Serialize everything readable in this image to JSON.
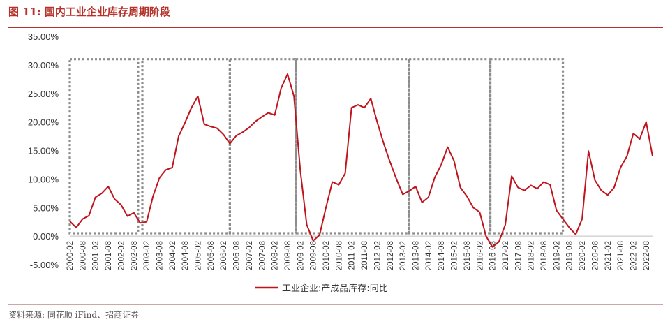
{
  "page": {
    "title": "图 11:  国内工业企业库存周期阶段",
    "source": "资料来源:  同花顺 iFind、招商证券"
  },
  "colors": {
    "accent": "#b5312a",
    "series": "#c0141c",
    "box": "#8c8c8c"
  },
  "chart_data": {
    "type": "line",
    "title": "",
    "xlabel": "",
    "ylabel": "",
    "ylim": [
      -5,
      35
    ],
    "yticks": [
      "35.00%",
      "30.00%",
      "25.00%",
      "20.00%",
      "15.00%",
      "10.00%",
      "5.00%",
      "0.00%",
      "-5.00%"
    ],
    "ytick_values": [
      35,
      30,
      25,
      20,
      15,
      10,
      5,
      0,
      -5
    ],
    "grid": false,
    "legend_position": "bottom",
    "xticks": [
      "2000-02",
      "2000-08",
      "2001-02",
      "2001-08",
      "2002-02",
      "2002-08",
      "2003-02",
      "2003-08",
      "2004-02",
      "2004-08",
      "2005-02",
      "2005-08",
      "2006-02",
      "2006-08",
      "2007-02",
      "2007-08",
      "2008-02",
      "2008-08",
      "2009-02",
      "2009-08",
      "2010-02",
      "2010-08",
      "2011-02",
      "2011-08",
      "2012-02",
      "2012-08",
      "2013-02",
      "2013-08",
      "2014-02",
      "2014-08",
      "2015-02",
      "2015-08",
      "2016-02",
      "2016-08",
      "2017-02",
      "2017-08",
      "2018-02",
      "2018-08",
      "2019-02",
      "2019-08",
      "2020-02",
      "2020-08",
      "2021-02",
      "2021-08",
      "2022-02",
      "2022-08"
    ],
    "series": [
      {
        "name": "工业企业:产成品库存:同比",
        "x": [
          "2000-02",
          "2000-05",
          "2000-08",
          "2000-11",
          "2001-02",
          "2001-05",
          "2001-08",
          "2001-11",
          "2002-02",
          "2002-05",
          "2002-08",
          "2002-11",
          "2003-02",
          "2003-05",
          "2003-08",
          "2003-11",
          "2004-02",
          "2004-05",
          "2004-08",
          "2004-11",
          "2005-02",
          "2005-05",
          "2005-08",
          "2005-11",
          "2006-02",
          "2006-05",
          "2006-08",
          "2006-11",
          "2007-02",
          "2007-05",
          "2007-08",
          "2007-11",
          "2008-02",
          "2008-05",
          "2008-08",
          "2008-11",
          "2009-02",
          "2009-05",
          "2009-08",
          "2009-11",
          "2010-02",
          "2010-05",
          "2010-08",
          "2010-11",
          "2011-02",
          "2011-05",
          "2011-08",
          "2011-11",
          "2012-02",
          "2012-05",
          "2012-08",
          "2012-11",
          "2013-02",
          "2013-05",
          "2013-08",
          "2013-11",
          "2014-02",
          "2014-05",
          "2014-08",
          "2014-11",
          "2015-02",
          "2015-05",
          "2015-08",
          "2015-11",
          "2016-02",
          "2016-05",
          "2016-08",
          "2016-11",
          "2017-02",
          "2017-05",
          "2017-08",
          "2017-11",
          "2018-02",
          "2018-05",
          "2018-08",
          "2018-11",
          "2019-02",
          "2019-05",
          "2019-08",
          "2019-11",
          "2020-02",
          "2020-05",
          "2020-08",
          "2020-11",
          "2021-02",
          "2021-05",
          "2021-08",
          "2021-11",
          "2022-02",
          "2022-05",
          "2022-08",
          "2022-11"
        ],
        "values": [
          2.6,
          1.5,
          3.0,
          3.6,
          6.8,
          7.5,
          8.7,
          6.5,
          5.5,
          3.5,
          4.1,
          2.3,
          2.5,
          7.0,
          10.2,
          11.6,
          12.0,
          17.5,
          19.9,
          22.5,
          24.5,
          19.6,
          19.2,
          18.9,
          17.8,
          16.2,
          17.6,
          18.2,
          19.0,
          20.1,
          20.9,
          21.6,
          21.2,
          25.9,
          28.4,
          24.5,
          11.5,
          2.0,
          -0.8,
          0.2,
          5.0,
          9.5,
          9.0,
          11.0,
          22.5,
          23.0,
          22.5,
          24.1,
          20.0,
          16.3,
          13.0,
          10.0,
          7.3,
          7.9,
          8.7,
          5.9,
          6.8,
          10.3,
          12.5,
          15.6,
          13.2,
          8.5,
          7.0,
          5.0,
          4.2,
          0.0,
          -1.9,
          -1.0,
          2.0,
          10.5,
          8.5,
          8.0,
          8.9,
          8.3,
          9.5,
          9.0,
          4.5,
          3.0,
          1.5,
          0.3,
          3.0,
          14.9,
          9.8,
          8.0,
          7.2,
          8.5,
          12.0,
          14.0,
          18.0,
          17.0,
          20.0,
          14.0
        ]
      }
    ],
    "boxes": [
      {
        "from": "2000-02",
        "to": "2002-10",
        "top": 31,
        "bottom": 0.5
      },
      {
        "from": "2002-12",
        "to": "2006-05",
        "top": 31,
        "bottom": 0.5
      },
      {
        "from": "2006-05",
        "to": "2008-12",
        "top": 31,
        "bottom": 0.5
      },
      {
        "from": "2008-12",
        "to": "2013-05",
        "top": 31,
        "bottom": 0.5
      },
      {
        "from": "2013-05",
        "to": "2016-07",
        "top": 31,
        "bottom": 0.5
      },
      {
        "from": "2016-07",
        "to": "2019-05",
        "top": 31,
        "bottom": 0.5
      }
    ]
  }
}
